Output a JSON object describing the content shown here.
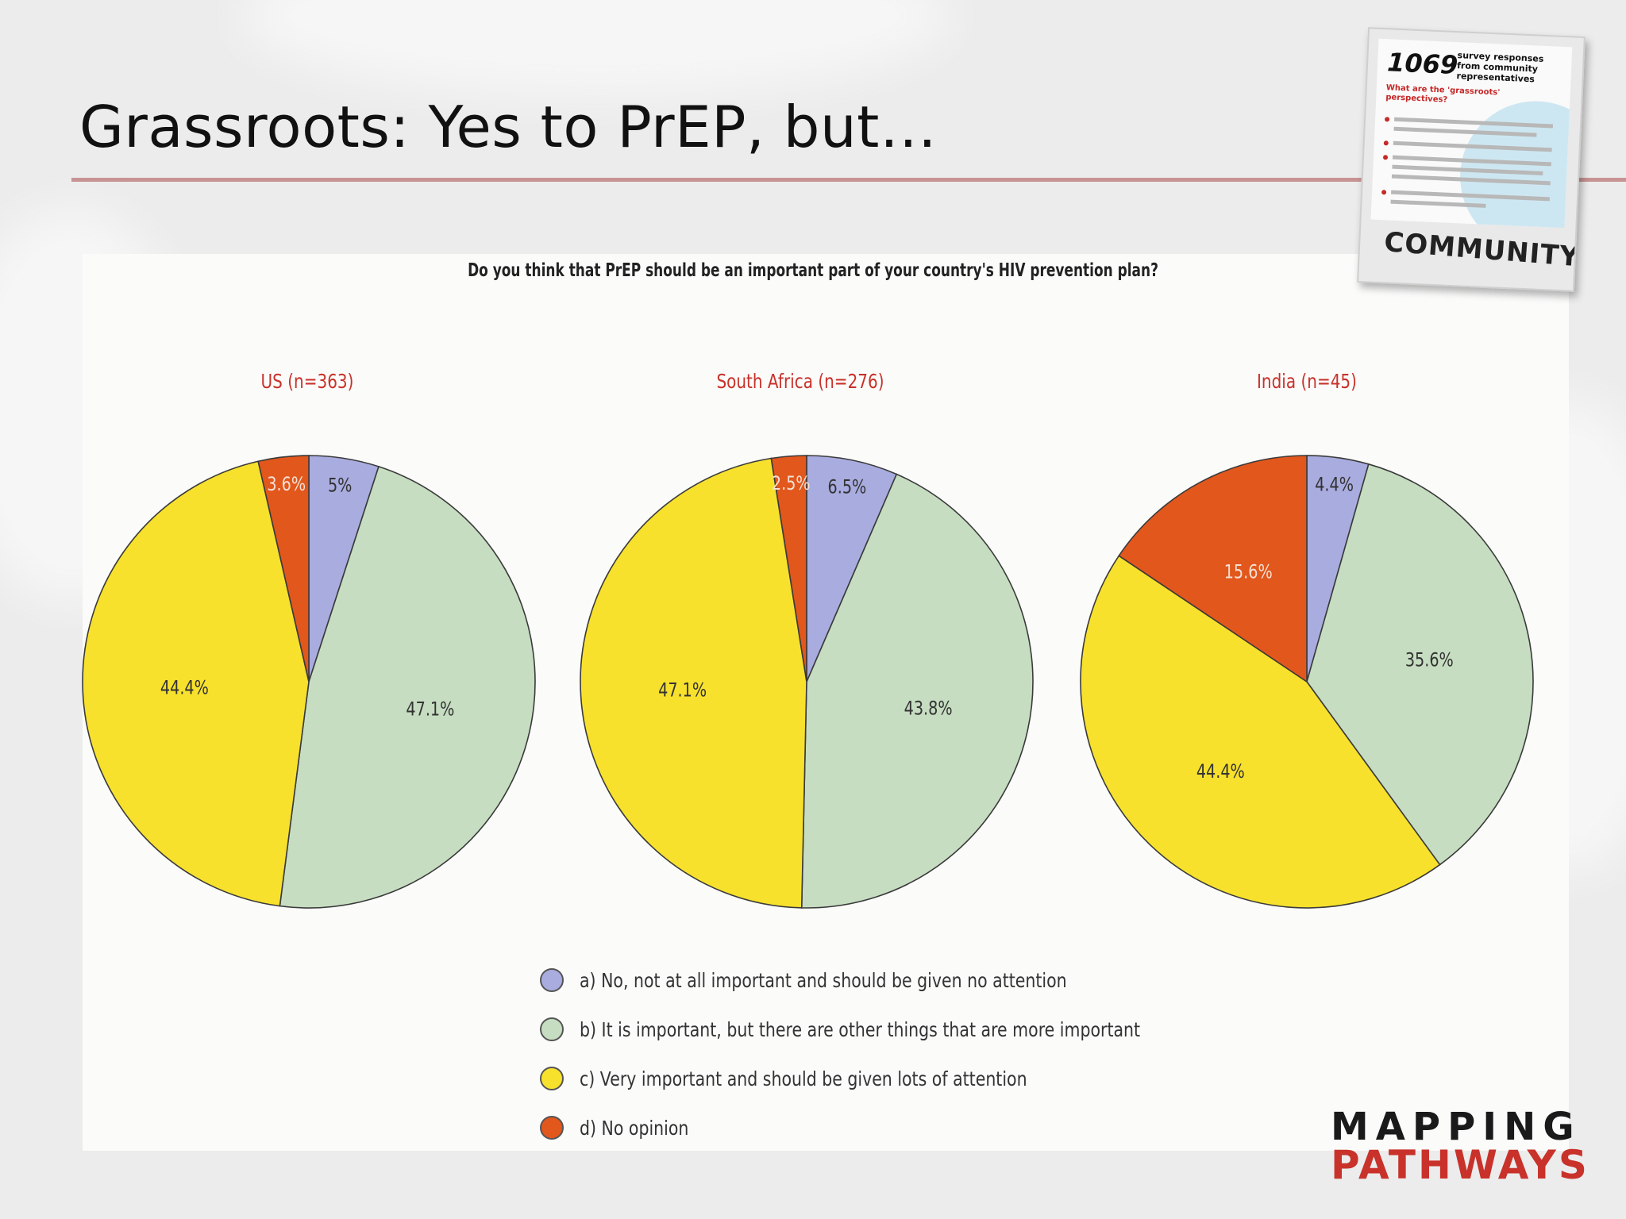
{
  "slide": {
    "title": "Grassroots: Yes to PrEP, but…"
  },
  "card": {
    "number": "1069",
    "caption": "survey responses from community representatives",
    "question": "What are the 'grassroots' perspectives?",
    "label": "COMMUNITY"
  },
  "logo": {
    "line1": "MAPPING",
    "line2": "PATHWAYS"
  },
  "colors": {
    "a": "#a9acdf",
    "b": "#c6ddc1",
    "c": "#f7e12c",
    "d": "#e2571c",
    "pie_title": "#c8322a"
  },
  "chart_data": {
    "type": "pie",
    "title": "Do you think that PrEP should be an important part of your country's HIV prevention plan?",
    "legend": [
      {
        "key": "a",
        "label": "a) No, not at all important and should be given no attention"
      },
      {
        "key": "b",
        "label": "b) It is important, but there are other things that are more important"
      },
      {
        "key": "c",
        "label": "c) Very important and should be given lots of attention"
      },
      {
        "key": "d",
        "label": "d)  No opinion"
      }
    ],
    "charts": [
      {
        "title": "US (n=363)",
        "slices": [
          {
            "key": "a",
            "value": 5,
            "label": "5%"
          },
          {
            "key": "b",
            "value": 47.1,
            "label": "47.1%"
          },
          {
            "key": "c",
            "value": 44.4,
            "label": "44.4%"
          },
          {
            "key": "d",
            "value": 3.6,
            "label": "3.6%"
          }
        ]
      },
      {
        "title": "South Africa (n=276)",
        "slices": [
          {
            "key": "a",
            "value": 6.5,
            "label": "6.5%"
          },
          {
            "key": "b",
            "value": 43.8,
            "label": "43.8%"
          },
          {
            "key": "c",
            "value": 47.1,
            "label": "47.1%"
          },
          {
            "key": "d",
            "value": 2.5,
            "label": "2.5%"
          }
        ]
      },
      {
        "title": "India (n=45)",
        "slices": [
          {
            "key": "a",
            "value": 4.4,
            "label": "4.4%"
          },
          {
            "key": "b",
            "value": 35.6,
            "label": "35.6%"
          },
          {
            "key": "c",
            "value": 44.4,
            "label": "44.4%"
          },
          {
            "key": "d",
            "value": 15.6,
            "label": "15.6%"
          }
        ]
      }
    ]
  }
}
